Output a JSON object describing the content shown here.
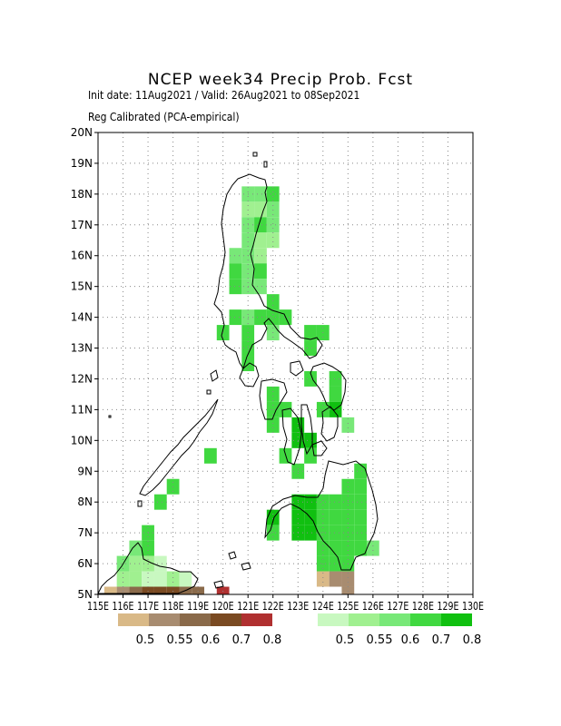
{
  "header": {
    "title": "NCEP week34 Precip Prob. Fcst",
    "line1": "Init date: 11Aug2021 / Valid: 26Aug2021 to 08Sep2021",
    "line2": "Reg Calibrated (PCA-empirical)"
  },
  "map": {
    "lon_range": [
      115,
      130
    ],
    "lat_range": [
      5,
      20
    ],
    "lat_ticks": [
      "5N",
      "6N",
      "7N",
      "8N",
      "9N",
      "10N",
      "11N",
      "12N",
      "13N",
      "14N",
      "15N",
      "16N",
      "17N",
      "18N",
      "19N",
      "20N"
    ],
    "lon_ticks": [
      "115E",
      "116E",
      "117E",
      "118E",
      "119E",
      "120E",
      "121E",
      "122E",
      "123E",
      "124E",
      "125E",
      "126E",
      "127E",
      "128E",
      "129E",
      "130E"
    ],
    "grid": "dotted"
  },
  "legend": {
    "dry": {
      "colors": [
        "#d9b987",
        "#a88c70",
        "#8a6a4a",
        "#7a4a22",
        "#b03030"
      ],
      "labels": [
        "0.5",
        "0.55",
        "0.6",
        "0.7",
        "0.8"
      ]
    },
    "wet": {
      "colors": [
        "#c8f8c0",
        "#a0f090",
        "#78e878",
        "#40d840",
        "#10c010"
      ],
      "labels": [
        "0.5",
        "0.55",
        "0.6",
        "0.7",
        "0.8"
      ]
    }
  },
  "cells": [
    {
      "lon": 121.0,
      "lat": 18.0,
      "c": 2
    },
    {
      "lon": 121.5,
      "lat": 18.0,
      "c": 2
    },
    {
      "lon": 122.0,
      "lat": 18.0,
      "c": 3
    },
    {
      "lon": 121.0,
      "lat": 17.5,
      "c": 1
    },
    {
      "lon": 121.5,
      "lat": 17.5,
      "c": 1
    },
    {
      "lon": 122.0,
      "lat": 17.5,
      "c": 2
    },
    {
      "lon": 121.0,
      "lat": 17.0,
      "c": 2
    },
    {
      "lon": 121.5,
      "lat": 17.0,
      "c": 3
    },
    {
      "lon": 122.0,
      "lat": 17.0,
      "c": 2
    },
    {
      "lon": 121.0,
      "lat": 16.5,
      "c": 2
    },
    {
      "lon": 121.5,
      "lat": 16.5,
      "c": 1
    },
    {
      "lon": 122.0,
      "lat": 16.5,
      "c": 1
    },
    {
      "lon": 120.5,
      "lat": 16.0,
      "c": 2
    },
    {
      "lon": 121.0,
      "lat": 16.0,
      "c": 2
    },
    {
      "lon": 121.5,
      "lat": 16.0,
      "c": 1
    },
    {
      "lon": 120.5,
      "lat": 15.5,
      "c": 3
    },
    {
      "lon": 121.0,
      "lat": 15.5,
      "c": 2
    },
    {
      "lon": 121.5,
      "lat": 15.5,
      "c": 3
    },
    {
      "lon": 120.5,
      "lat": 15.0,
      "c": 3
    },
    {
      "lon": 121.0,
      "lat": 15.0,
      "c": 2
    },
    {
      "lon": 121.5,
      "lat": 15.0,
      "c": 2
    },
    {
      "lon": 122.0,
      "lat": 14.5,
      "c": 3
    },
    {
      "lon": 120.5,
      "lat": 14.0,
      "c": 3
    },
    {
      "lon": 121.0,
      "lat": 14.0,
      "c": 2
    },
    {
      "lon": 121.5,
      "lat": 14.0,
      "c": 3
    },
    {
      "lon": 122.0,
      "lat": 14.0,
      "c": 3
    },
    {
      "lon": 122.5,
      "lat": 14.0,
      "c": 3
    },
    {
      "lon": 120.0,
      "lat": 13.5,
      "c": 3
    },
    {
      "lon": 121.0,
      "lat": 13.5,
      "c": 3
    },
    {
      "lon": 122.0,
      "lat": 13.5,
      "c": 2
    },
    {
      "lon": 123.5,
      "lat": 13.5,
      "c": 3
    },
    {
      "lon": 124.0,
      "lat": 13.5,
      "c": 3
    },
    {
      "lon": 121.0,
      "lat": 13.0,
      "c": 3
    },
    {
      "lon": 123.5,
      "lat": 13.0,
      "c": 3
    },
    {
      "lon": 121.0,
      "lat": 12.5,
      "c": 3
    },
    {
      "lon": 123.5,
      "lat": 12.0,
      "c": 3
    },
    {
      "lon": 124.5,
      "lat": 12.0,
      "c": 3
    },
    {
      "lon": 122.0,
      "lat": 11.5,
      "c": 3
    },
    {
      "lon": 124.5,
      "lat": 11.5,
      "c": 3
    },
    {
      "lon": 122.0,
      "lat": 11.0,
      "c": 3
    },
    {
      "lon": 122.5,
      "lat": 11.0,
      "c": 3
    },
    {
      "lon": 124.0,
      "lat": 11.0,
      "c": 3
    },
    {
      "lon": 124.5,
      "lat": 11.0,
      "c": 4
    },
    {
      "lon": 122.0,
      "lat": 10.5,
      "c": 3
    },
    {
      "lon": 123.0,
      "lat": 10.5,
      "c": 4
    },
    {
      "lon": 125.0,
      "lat": 10.5,
      "c": 2
    },
    {
      "lon": 123.0,
      "lat": 10.0,
      "c": 4
    },
    {
      "lon": 123.5,
      "lat": 10.0,
      "c": 4
    },
    {
      "lon": 119.5,
      "lat": 9.5,
      "c": 3
    },
    {
      "lon": 122.5,
      "lat": 9.5,
      "c": 3
    },
    {
      "lon": 123.5,
      "lat": 9.5,
      "c": 3
    },
    {
      "lon": 123.0,
      "lat": 9.0,
      "c": 3
    },
    {
      "lon": 125.5,
      "lat": 9.0,
      "c": 3
    },
    {
      "lon": 118.0,
      "lat": 8.5,
      "c": 3
    },
    {
      "lon": 125.0,
      "lat": 8.5,
      "c": 3
    },
    {
      "lon": 125.5,
      "lat": 8.5,
      "c": 3
    },
    {
      "lon": 117.5,
      "lat": 8.0,
      "c": 3
    },
    {
      "lon": 123.0,
      "lat": 8.0,
      "c": 4
    },
    {
      "lon": 123.5,
      "lat": 8.0,
      "c": 4
    },
    {
      "lon": 124.0,
      "lat": 8.0,
      "c": 3
    },
    {
      "lon": 124.5,
      "lat": 8.0,
      "c": 3
    },
    {
      "lon": 125.0,
      "lat": 8.0,
      "c": 3
    },
    {
      "lon": 125.5,
      "lat": 8.0,
      "c": 3
    },
    {
      "lon": 122.0,
      "lat": 7.5,
      "c": 4
    },
    {
      "lon": 123.0,
      "lat": 7.5,
      "c": 4
    },
    {
      "lon": 123.5,
      "lat": 7.5,
      "c": 4
    },
    {
      "lon": 124.0,
      "lat": 7.5,
      "c": 3
    },
    {
      "lon": 124.5,
      "lat": 7.5,
      "c": 3
    },
    {
      "lon": 125.0,
      "lat": 7.5,
      "c": 3
    },
    {
      "lon": 125.5,
      "lat": 7.5,
      "c": 3
    },
    {
      "lon": 122.0,
      "lat": 7.0,
      "c": 3
    },
    {
      "lon": 123.0,
      "lat": 7.0,
      "c": 4
    },
    {
      "lon": 123.5,
      "lat": 7.0,
      "c": 4
    },
    {
      "lon": 124.0,
      "lat": 7.0,
      "c": 3
    },
    {
      "lon": 124.5,
      "lat": 7.0,
      "c": 3
    },
    {
      "lon": 125.0,
      "lat": 7.0,
      "c": 3
    },
    {
      "lon": 125.5,
      "lat": 7.0,
      "c": 3
    },
    {
      "lon": 117.0,
      "lat": 7.0,
      "c": 3
    },
    {
      "lon": 116.5,
      "lat": 6.5,
      "c": 2
    },
    {
      "lon": 117.0,
      "lat": 6.5,
      "c": 3
    },
    {
      "lon": 124.0,
      "lat": 6.5,
      "c": 3
    },
    {
      "lon": 124.5,
      "lat": 6.5,
      "c": 3
    },
    {
      "lon": 125.0,
      "lat": 6.5,
      "c": 3
    },
    {
      "lon": 125.5,
      "lat": 6.5,
      "c": 3
    },
    {
      "lon": 126.0,
      "lat": 6.5,
      "c": 2
    },
    {
      "lon": 116.0,
      "lat": 6.0,
      "c": 2
    },
    {
      "lon": 116.5,
      "lat": 6.0,
      "c": 1
    },
    {
      "lon": 117.0,
      "lat": 6.0,
      "c": 1
    },
    {
      "lon": 117.5,
      "lat": 6.0,
      "c": 0
    },
    {
      "lon": 124.0,
      "lat": 6.0,
      "c": 3
    },
    {
      "lon": 124.5,
      "lat": 6.0,
      "c": 3
    },
    {
      "lon": 125.0,
      "lat": 6.0,
      "c": 3
    },
    {
      "lon": 116.0,
      "lat": 5.5,
      "c": 1
    },
    {
      "lon": 116.5,
      "lat": 5.5,
      "c": 1
    },
    {
      "lon": 117.0,
      "lat": 5.5,
      "c": 0
    },
    {
      "lon": 117.5,
      "lat": 5.5,
      "c": 0
    },
    {
      "lon": 118.0,
      "lat": 5.5,
      "c": 1
    },
    {
      "lon": 118.5,
      "lat": 5.5,
      "c": 0
    },
    {
      "lon": 124.0,
      "lat": 5.5,
      "c": -1
    },
    {
      "lon": 124.5,
      "lat": 5.5,
      "c": -2
    },
    {
      "lon": 125.0,
      "lat": 5.5,
      "c": -2
    },
    {
      "lon": 125.0,
      "lat": 5.0,
      "c": -2
    },
    {
      "lon": 115.5,
      "lat": 5.0,
      "c": -1
    },
    {
      "lon": 116.0,
      "lat": 5.0,
      "c": -2
    },
    {
      "lon": 116.5,
      "lat": 5.0,
      "c": -3
    },
    {
      "lon": 117.0,
      "lat": 5.0,
      "c": -4
    },
    {
      "lon": 117.5,
      "lat": 5.0,
      "c": -4
    },
    {
      "lon": 118.0,
      "lat": 5.0,
      "c": -4
    },
    {
      "lon": 118.5,
      "lat": 5.0,
      "c": -3
    },
    {
      "lon": 119.0,
      "lat": 5.0,
      "c": -3
    },
    {
      "lon": 120.0,
      "lat": 5.0,
      "c": -5
    }
  ]
}
